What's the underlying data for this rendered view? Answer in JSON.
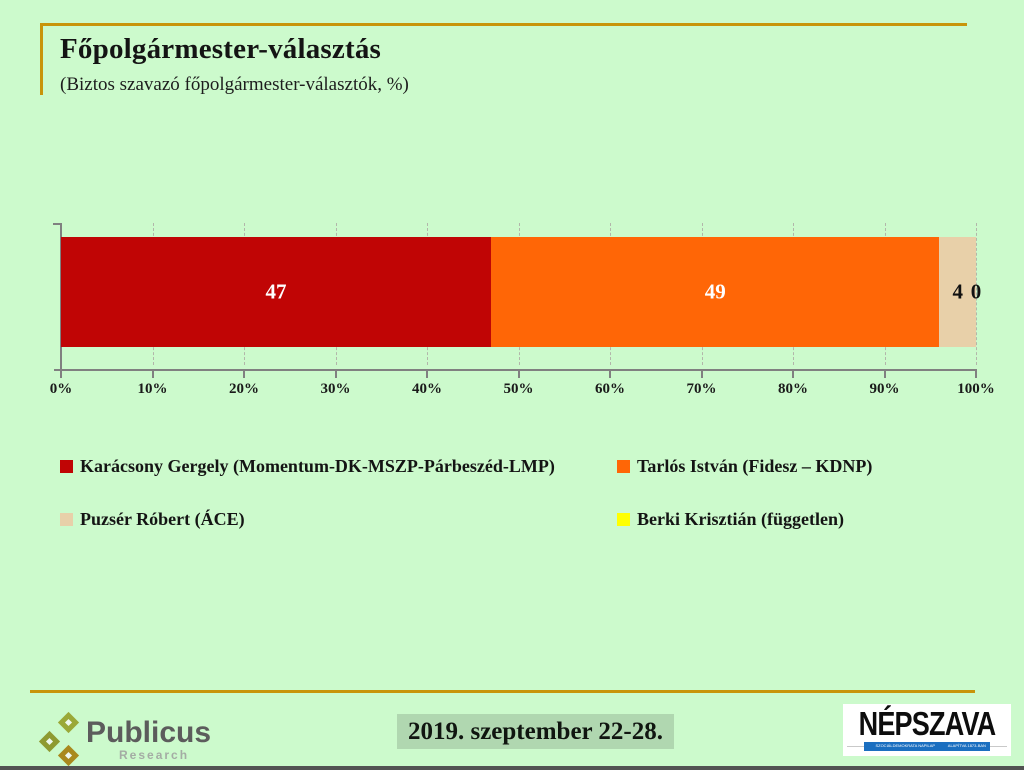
{
  "page": {
    "background_color": "#ccfacc",
    "accent_line_color": "#c8940a"
  },
  "header": {
    "title": "Főpolgármester-választás",
    "subtitle": "(Biztos szavazó főpolgármester-választók, %)"
  },
  "chart_data": {
    "type": "bar",
    "orientation": "horizontal",
    "stacked": true,
    "xlim": [
      0,
      100
    ],
    "ticks": [
      "0%",
      "10%",
      "20%",
      "30%",
      "40%",
      "50%",
      "60%",
      "70%",
      "80%",
      "90%",
      "100%"
    ],
    "grid": "vertical dashed gridlines every 10%",
    "legend_position": "below chart, two-column grid",
    "series": [
      {
        "name": "Karácsony Gergely (Momentum-DK-MSZP-Párbeszéd-LMP)",
        "value": 47,
        "color": "#c00505",
        "label_color": "#ffffff"
      },
      {
        "name": "Tarlós István (Fidesz – KDNP)",
        "value": 49,
        "color": "#ff6606",
        "label_color": "#ffffff"
      },
      {
        "name": "Puzsér Róbert (ÁCE)",
        "value": 4,
        "color": "#e8d0a9",
        "label_color": "#111111"
      },
      {
        "name": "Berki Krisztián (független)",
        "value": 0,
        "color": "#ffff00",
        "label_color": "#111111"
      }
    ]
  },
  "footer": {
    "publicus_name": "Publicus",
    "publicus_sub": "Research",
    "date_badge": "2019. szeptember 22-28.",
    "nepszava_name": "NÉPSZAVA",
    "nepszava_tagline_left": "SZOCIÁLDEMOKRATA NAPILAP",
    "nepszava_tagline_right": "ALAPÍTVA 1873-BAN"
  }
}
